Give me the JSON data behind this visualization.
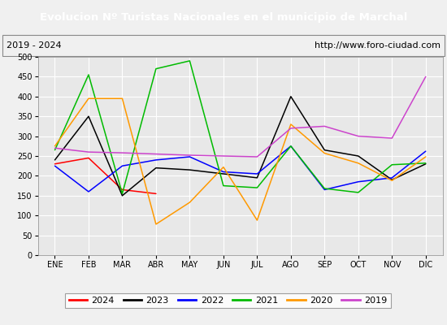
{
  "title": "Evolucion Nº Turistas Nacionales en el municipio de Marchal",
  "subtitle_left": "2019 - 2024",
  "subtitle_right": "http://www.foro-ciudad.com",
  "months": [
    "ENE",
    "FEB",
    "MAR",
    "ABR",
    "MAY",
    "JUN",
    "JUL",
    "AGO",
    "SEP",
    "OCT",
    "NOV",
    "DIC"
  ],
  "ylim": [
    0,
    500
  ],
  "yticks": [
    0,
    50,
    100,
    150,
    200,
    250,
    300,
    350,
    400,
    450,
    500
  ],
  "series": {
    "2024": {
      "color": "#ff0000",
      "data": [
        230,
        245,
        165,
        155,
        null,
        null,
        null,
        null,
        null,
        null,
        null,
        null
      ]
    },
    "2023": {
      "color": "#000000",
      "data": [
        240,
        350,
        150,
        220,
        215,
        205,
        195,
        400,
        265,
        250,
        190,
        230
      ]
    },
    "2022": {
      "color": "#0000ff",
      "data": [
        225,
        160,
        225,
        240,
        248,
        210,
        205,
        275,
        165,
        185,
        195,
        262
      ]
    },
    "2021": {
      "color": "#00bb00",
      "data": [
        265,
        455,
        155,
        470,
        490,
        175,
        170,
        275,
        168,
        158,
        228,
        232
      ]
    },
    "2020": {
      "color": "#ff9900",
      "data": [
        275,
        395,
        395,
        78,
        133,
        222,
        88,
        330,
        257,
        232,
        188,
        248
      ]
    },
    "2019": {
      "color": "#cc44cc",
      "data": [
        270,
        260,
        258,
        255,
        252,
        250,
        248,
        320,
        325,
        300,
        295,
        450
      ]
    }
  },
  "title_bg_color": "#4472c4",
  "title_text_color": "#ffffff",
  "plot_bg_color": "#e8e8e8",
  "grid_color": "#ffffff",
  "legend_order": [
    "2024",
    "2023",
    "2022",
    "2021",
    "2020",
    "2019"
  ]
}
